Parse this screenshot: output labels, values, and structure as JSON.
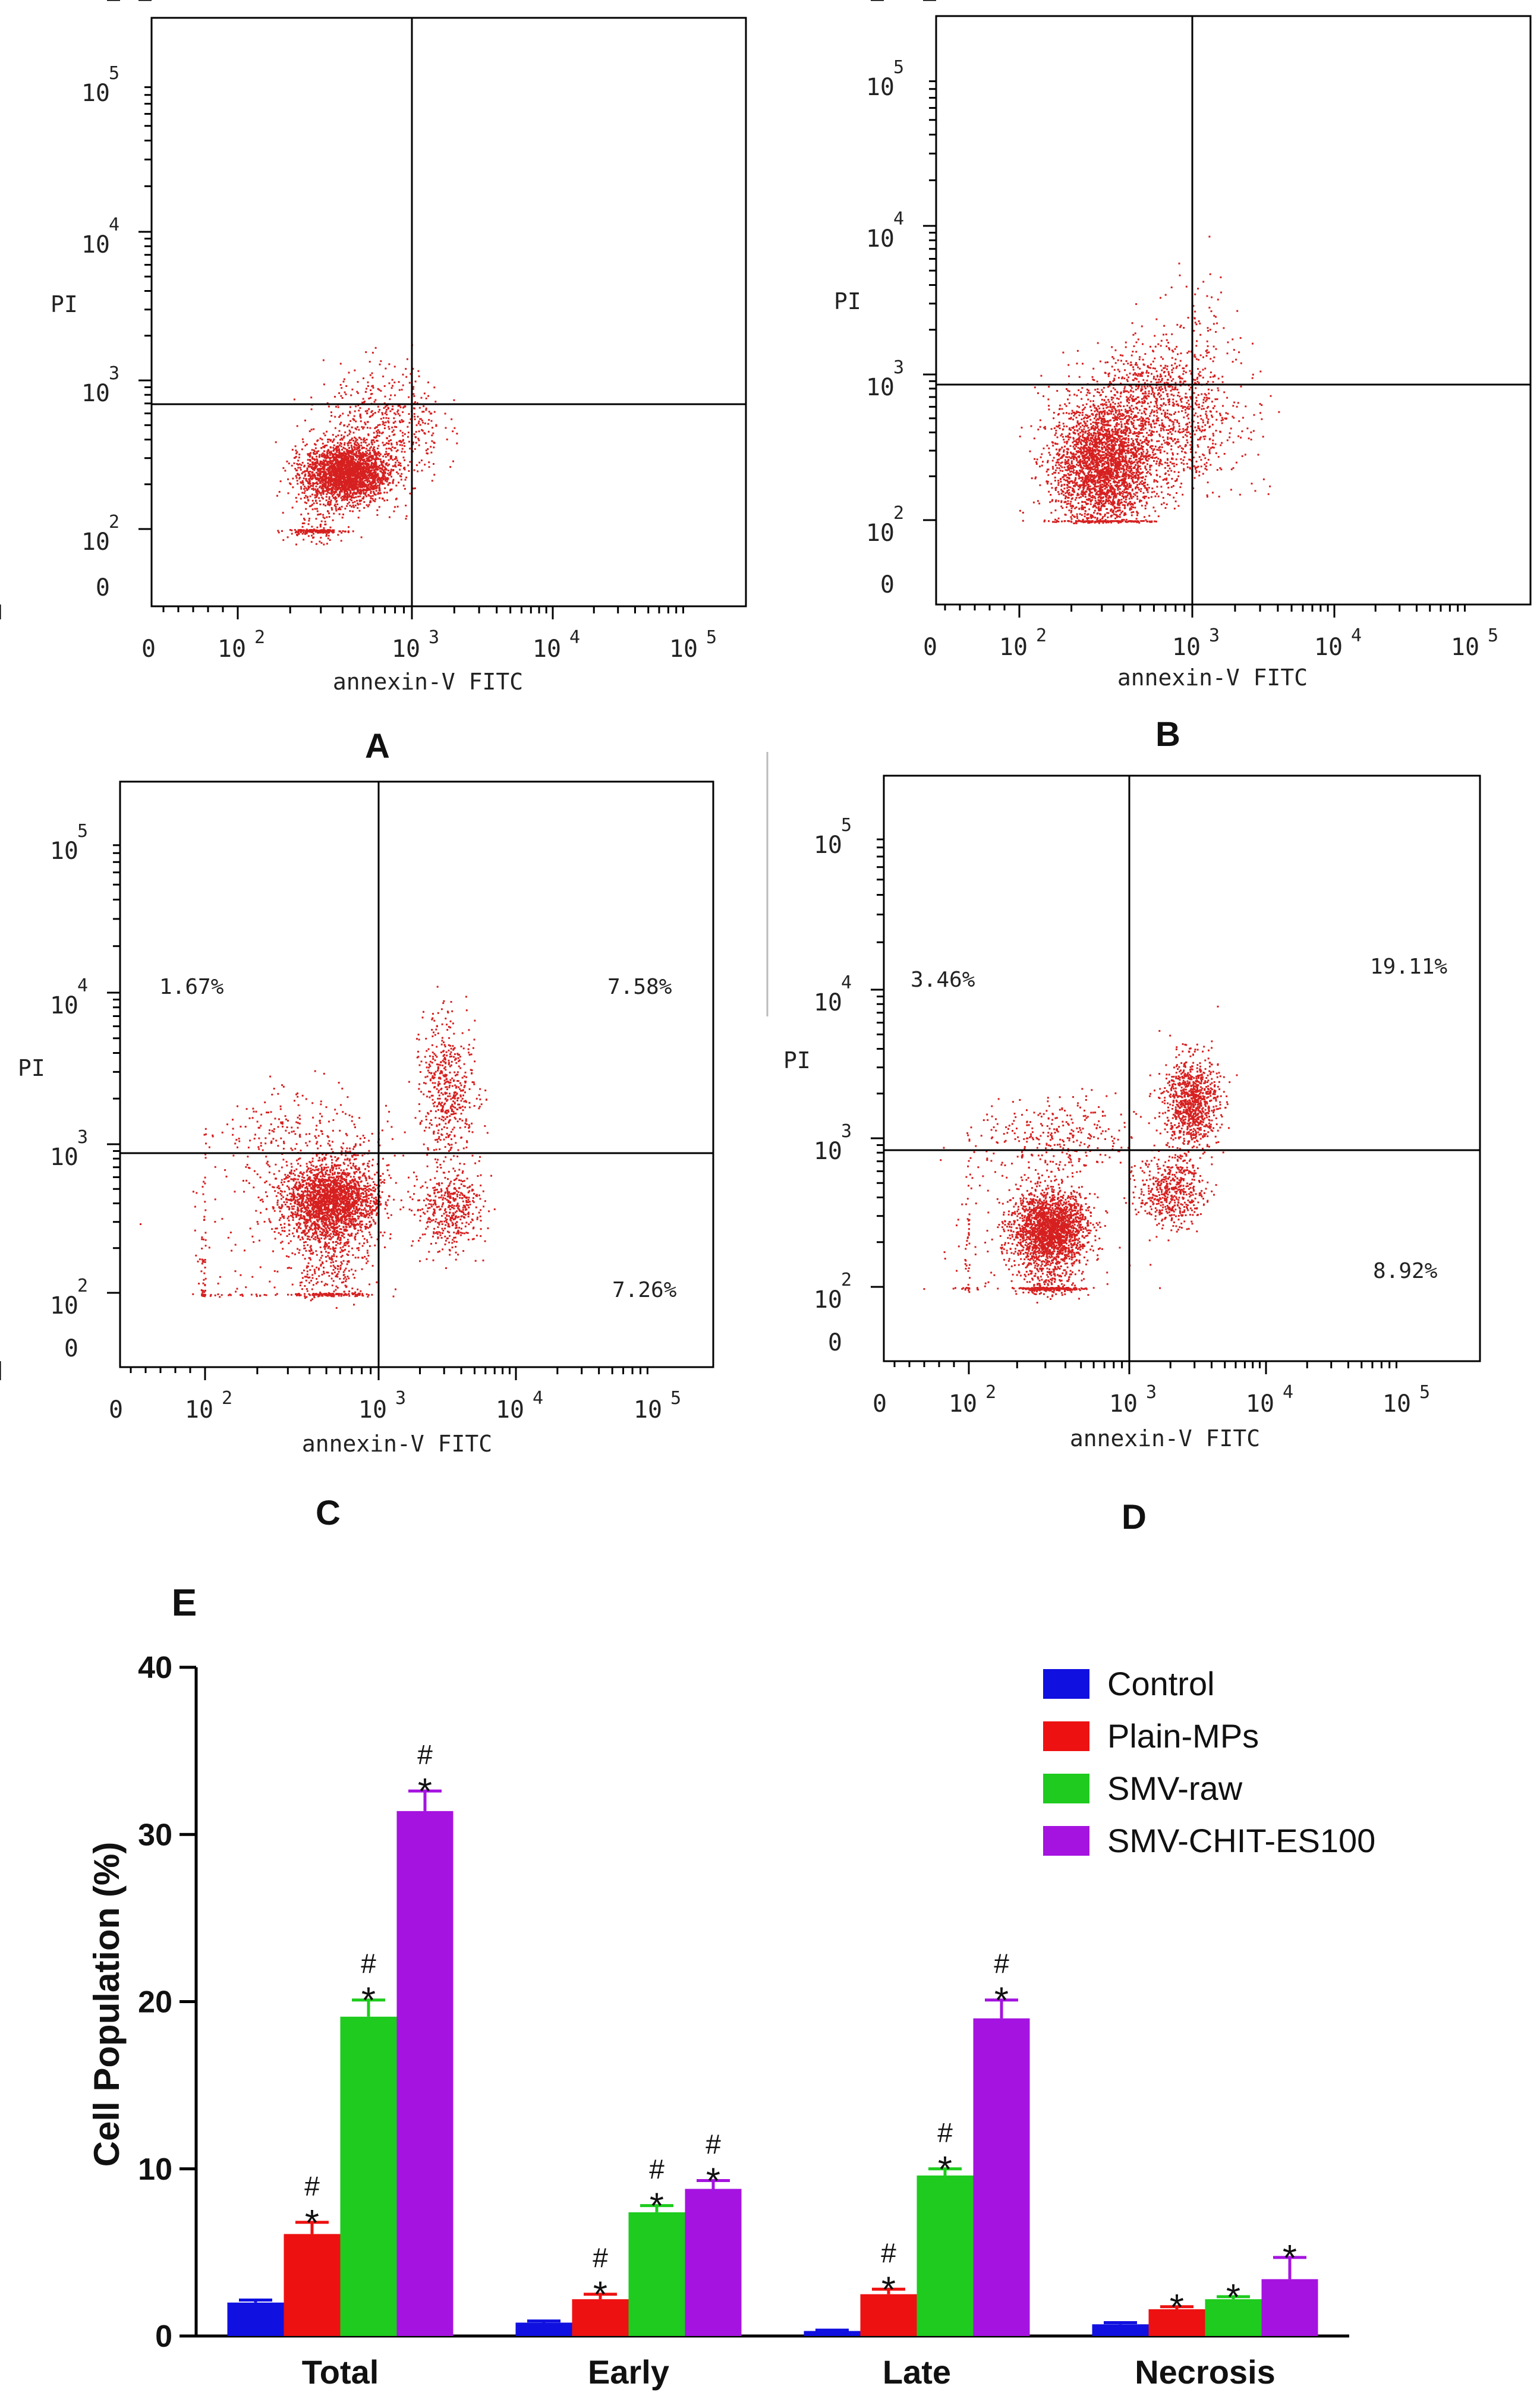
{
  "chart_data": [
    {
      "type": "scatter",
      "panel": "A",
      "xlabel": "annexin-V FITC",
      "ylabel": "PI",
      "xscale": "log",
      "yscale": "log",
      "x_ticks": [
        "0",
        "10",
        "10",
        "10",
        "10"
      ],
      "x_tick_exp": [
        "",
        "2",
        "3",
        "4",
        "5"
      ],
      "y_ticks": [
        "0",
        "10",
        "10",
        "10",
        "10"
      ],
      "y_tick_exp": [
        "",
        "2",
        "3",
        "4",
        "5"
      ],
      "quadrant_labels": {
        "upper_left": "",
        "upper_right": "",
        "lower_right": ""
      },
      "clusters": [
        {
          "cx": 2.62,
          "cy": 2.38,
          "sx": 0.12,
          "sy": 0.1,
          "n": 2400
        },
        {
          "cx": 2.85,
          "cy": 2.7,
          "sx": 0.18,
          "sy": 0.2,
          "n": 500
        },
        {
          "cx": 2.45,
          "cy": 1.9,
          "sx": 0.08,
          "sy": 0.3,
          "n": 300
        }
      ],
      "color": "#d62020"
    },
    {
      "type": "scatter",
      "panel": "B",
      "xlabel": "annexin-V FITC",
      "ylabel": "PI",
      "xscale": "log",
      "yscale": "log",
      "x_ticks": [
        "0",
        "10",
        "10",
        "10",
        "10"
      ],
      "x_tick_exp": [
        "",
        "2",
        "3",
        "4",
        "5"
      ],
      "y_ticks": [
        "0",
        "10",
        "10",
        "10",
        "10"
      ],
      "y_tick_exp": [
        "",
        "2",
        "3",
        "4",
        "5"
      ],
      "quadrant_labels": {
        "upper_left": "",
        "upper_right": "",
        "lower_right": ""
      },
      "clusters": [
        {
          "cx": 2.48,
          "cy": 2.38,
          "sx": 0.15,
          "sy": 0.22,
          "n": 2800
        },
        {
          "cx": 2.75,
          "cy": 2.95,
          "sx": 0.14,
          "sy": 0.14,
          "n": 350
        },
        {
          "cx": 2.85,
          "cy": 2.6,
          "sx": 0.25,
          "sy": 0.2,
          "n": 600
        },
        {
          "cx": 3.05,
          "cy": 3.0,
          "sx": 0.15,
          "sy": 0.35,
          "n": 200
        }
      ],
      "color": "#d62020"
    },
    {
      "type": "scatter",
      "panel": "C",
      "xlabel": "annexin-V FITC",
      "ylabel": "PI",
      "xscale": "log",
      "yscale": "log",
      "x_ticks": [
        "0",
        "10",
        "10",
        "10",
        "10"
      ],
      "x_tick_exp": [
        "",
        "2",
        "3",
        "4",
        "5"
      ],
      "y_ticks": [
        "0",
        "10",
        "10",
        "10",
        "10"
      ],
      "y_tick_exp": [
        "",
        "2",
        "3",
        "4",
        "5"
      ],
      "quadrant_labels": {
        "upper_left": "1.67%",
        "upper_right": "7.58%",
        "lower_right": "7.26%"
      },
      "clusters": [
        {
          "cx": 2.72,
          "cy": 2.62,
          "sx": 0.14,
          "sy": 0.13,
          "n": 2200
        },
        {
          "cx": 2.72,
          "cy": 2.2,
          "sx": 0.12,
          "sy": 0.3,
          "n": 500
        },
        {
          "cx": 3.5,
          "cy": 3.38,
          "sx": 0.1,
          "sy": 0.22,
          "n": 500
        },
        {
          "cx": 3.5,
          "cy": 2.58,
          "sx": 0.12,
          "sy": 0.14,
          "n": 450
        },
        {
          "cx": 2.55,
          "cy": 3.05,
          "sx": 0.28,
          "sy": 0.15,
          "n": 250
        },
        {
          "cx": 2.1,
          "cy": 2.2,
          "sx": 0.35,
          "sy": 0.35,
          "n": 150
        }
      ],
      "color": "#d62020"
    },
    {
      "type": "scatter",
      "panel": "D",
      "xlabel": "annexin-V FITC",
      "ylabel": "PI",
      "xscale": "log",
      "yscale": "log",
      "x_ticks": [
        "0",
        "10",
        "10",
        "10",
        "10"
      ],
      "x_tick_exp": [
        "",
        "2",
        "3",
        "4",
        "5"
      ],
      "y_ticks": [
        "0",
        "10",
        "10",
        "10",
        "10"
      ],
      "y_tick_exp": [
        "",
        "2",
        "3",
        "4",
        "5"
      ],
      "quadrant_labels": {
        "upper_left": "3.46%",
        "upper_right": "19.11%",
        "lower_right": "8.92%"
      },
      "clusters": [
        {
          "cx": 2.5,
          "cy": 2.4,
          "sx": 0.12,
          "sy": 0.12,
          "n": 1900
        },
        {
          "cx": 2.5,
          "cy": 2.0,
          "sx": 0.1,
          "sy": 0.3,
          "n": 500
        },
        {
          "cx": 3.45,
          "cy": 3.25,
          "sx": 0.1,
          "sy": 0.15,
          "n": 900
        },
        {
          "cx": 3.3,
          "cy": 2.65,
          "sx": 0.12,
          "sy": 0.12,
          "n": 500
        },
        {
          "cx": 2.55,
          "cy": 3.0,
          "sx": 0.25,
          "sy": 0.14,
          "n": 300
        },
        {
          "cx": 2.1,
          "cy": 2.3,
          "sx": 0.4,
          "sy": 0.35,
          "n": 150
        }
      ],
      "color": "#d62020"
    },
    {
      "type": "bar",
      "panel": "E",
      "categories": [
        "Total",
        "Early",
        "Late",
        "Necrosis"
      ],
      "ylabel": "Cell Population (%)",
      "xlabel": "",
      "ylim": [
        0,
        40
      ],
      "y_ticks": [
        "0",
        "10",
        "20",
        "30",
        "40"
      ],
      "legend_position": "top-right",
      "series": [
        {
          "name": "Control",
          "color": "#1010e0",
          "values": [
            2.0,
            0.8,
            0.3,
            0.7
          ],
          "errors": [
            0.15,
            0.1,
            0.05,
            0.1
          ],
          "markers": [
            "",
            "",
            "",
            ""
          ]
        },
        {
          "name": "Plain-MPs",
          "color": "#ee1111",
          "values": [
            6.1,
            2.2,
            2.5,
            1.6
          ],
          "errors": [
            0.7,
            0.3,
            0.3,
            0.15
          ],
          "markers": [
            "#*",
            "#*",
            "#*",
            "*"
          ]
        },
        {
          "name": "SMV-raw",
          "color": "#1ecb1e",
          "values": [
            19.1,
            7.4,
            9.6,
            2.2
          ],
          "errors": [
            1.0,
            0.4,
            0.4,
            0.15
          ],
          "markers": [
            "#*",
            "#*",
            "#*",
            "*"
          ]
        },
        {
          "name": "SMV-CHIT-ES100",
          "color": "#a513e0",
          "values": [
            31.4,
            8.8,
            19.0,
            3.4
          ],
          "errors": [
            1.2,
            0.5,
            1.1,
            1.3
          ],
          "markers": [
            "#*",
            "#*",
            "#*",
            "*"
          ]
        }
      ]
    }
  ]
}
